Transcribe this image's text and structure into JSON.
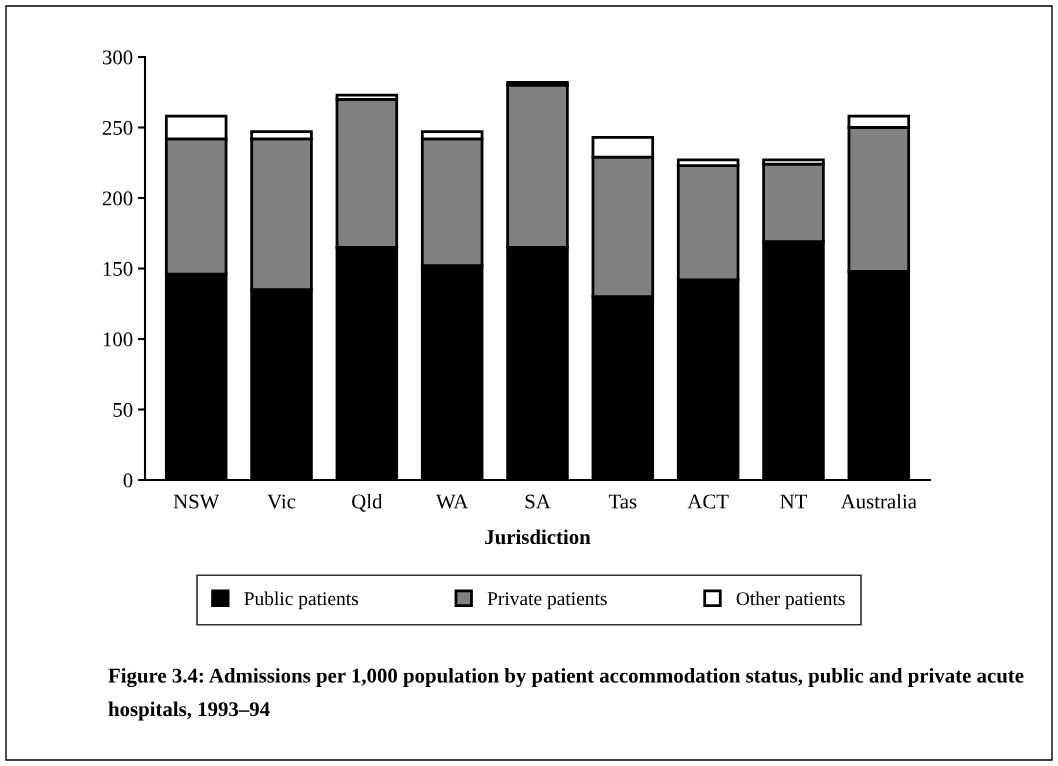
{
  "chart_data": {
    "type": "bar",
    "stacked": true,
    "title": "Figure 3.4: Admissions per 1,000 population by patient accommodation status, public and private acute hospitals, 1993–94",
    "xlabel": "Jurisdiction",
    "categories": [
      "NSW",
      "Vic",
      "Qld",
      "WA",
      "SA",
      "Tas",
      "ACT",
      "NT",
      "Australia"
    ],
    "series": [
      {
        "name": "Public patients",
        "color": "#000000",
        "values": [
          146,
          135,
          165,
          152,
          165,
          130,
          142,
          169,
          148
        ]
      },
      {
        "name": "Private patients",
        "color": "#808080",
        "values": [
          96,
          107,
          105,
          90,
          115,
          99,
          81,
          55,
          102
        ]
      },
      {
        "name": "Other patients",
        "color": "#ffffff",
        "values": [
          16,
          5,
          3,
          5,
          2,
          14,
          4,
          3,
          8
        ]
      }
    ],
    "ylim": [
      0,
      300
    ],
    "yticks": [
      0,
      50,
      100,
      150,
      200,
      250,
      300
    ],
    "grid": false,
    "legend": "bottom"
  }
}
